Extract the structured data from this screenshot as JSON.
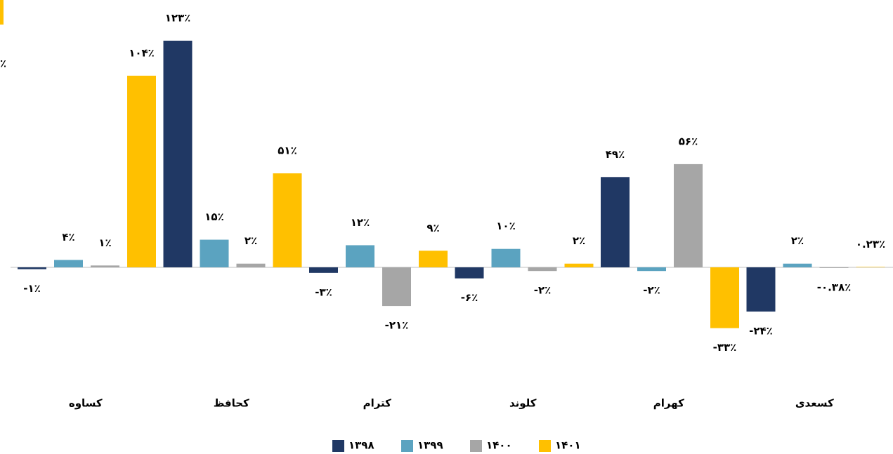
{
  "clipped_text": "٪",
  "chart_data": {
    "type": "bar",
    "categories": [
      "کساوه",
      "کحافظ",
      "کترام",
      "کلوند",
      "کهرام",
      "کسعدی"
    ],
    "series": [
      {
        "name": "۱۳۹۸",
        "color": "#203864",
        "values": [
          -1,
          123,
          -3,
          -6,
          49,
          -24
        ],
        "value_labels": [
          "-۱٪",
          "۱۲۳٪",
          "-۳٪",
          "-۶٪",
          "۴۹٪",
          "-۲۴٪"
        ]
      },
      {
        "name": "۱۳۹۹",
        "color": "#5ba3c0",
        "values": [
          4,
          15,
          12,
          10,
          -2,
          2
        ],
        "value_labels": [
          "۴٪",
          "۱۵٪",
          "۱۲٪",
          "۱۰٪",
          "-۲٪",
          "۲٪"
        ]
      },
      {
        "name": "۱۴۰۰",
        "color": "#a6a6a6",
        "values": [
          1,
          2,
          -21,
          -2,
          56,
          -0.38
        ],
        "value_labels": [
          "۱٪",
          "۲٪",
          "-۲۱٪",
          "-۲٪",
          "۵۶٪",
          "-۰.۳۸٪"
        ]
      },
      {
        "name": "۱۴۰۱",
        "color": "#ffc000",
        "values": [
          104,
          51,
          9,
          2,
          -33,
          0.23
        ],
        "value_labels": [
          "۱۰۴٪",
          "۵۱٪",
          "۹٪",
          "۲٪",
          "-۳۳٪",
          "۰.۲۳٪"
        ]
      }
    ],
    "ylim": [
      -40,
      130
    ],
    "legend": "bottom"
  }
}
